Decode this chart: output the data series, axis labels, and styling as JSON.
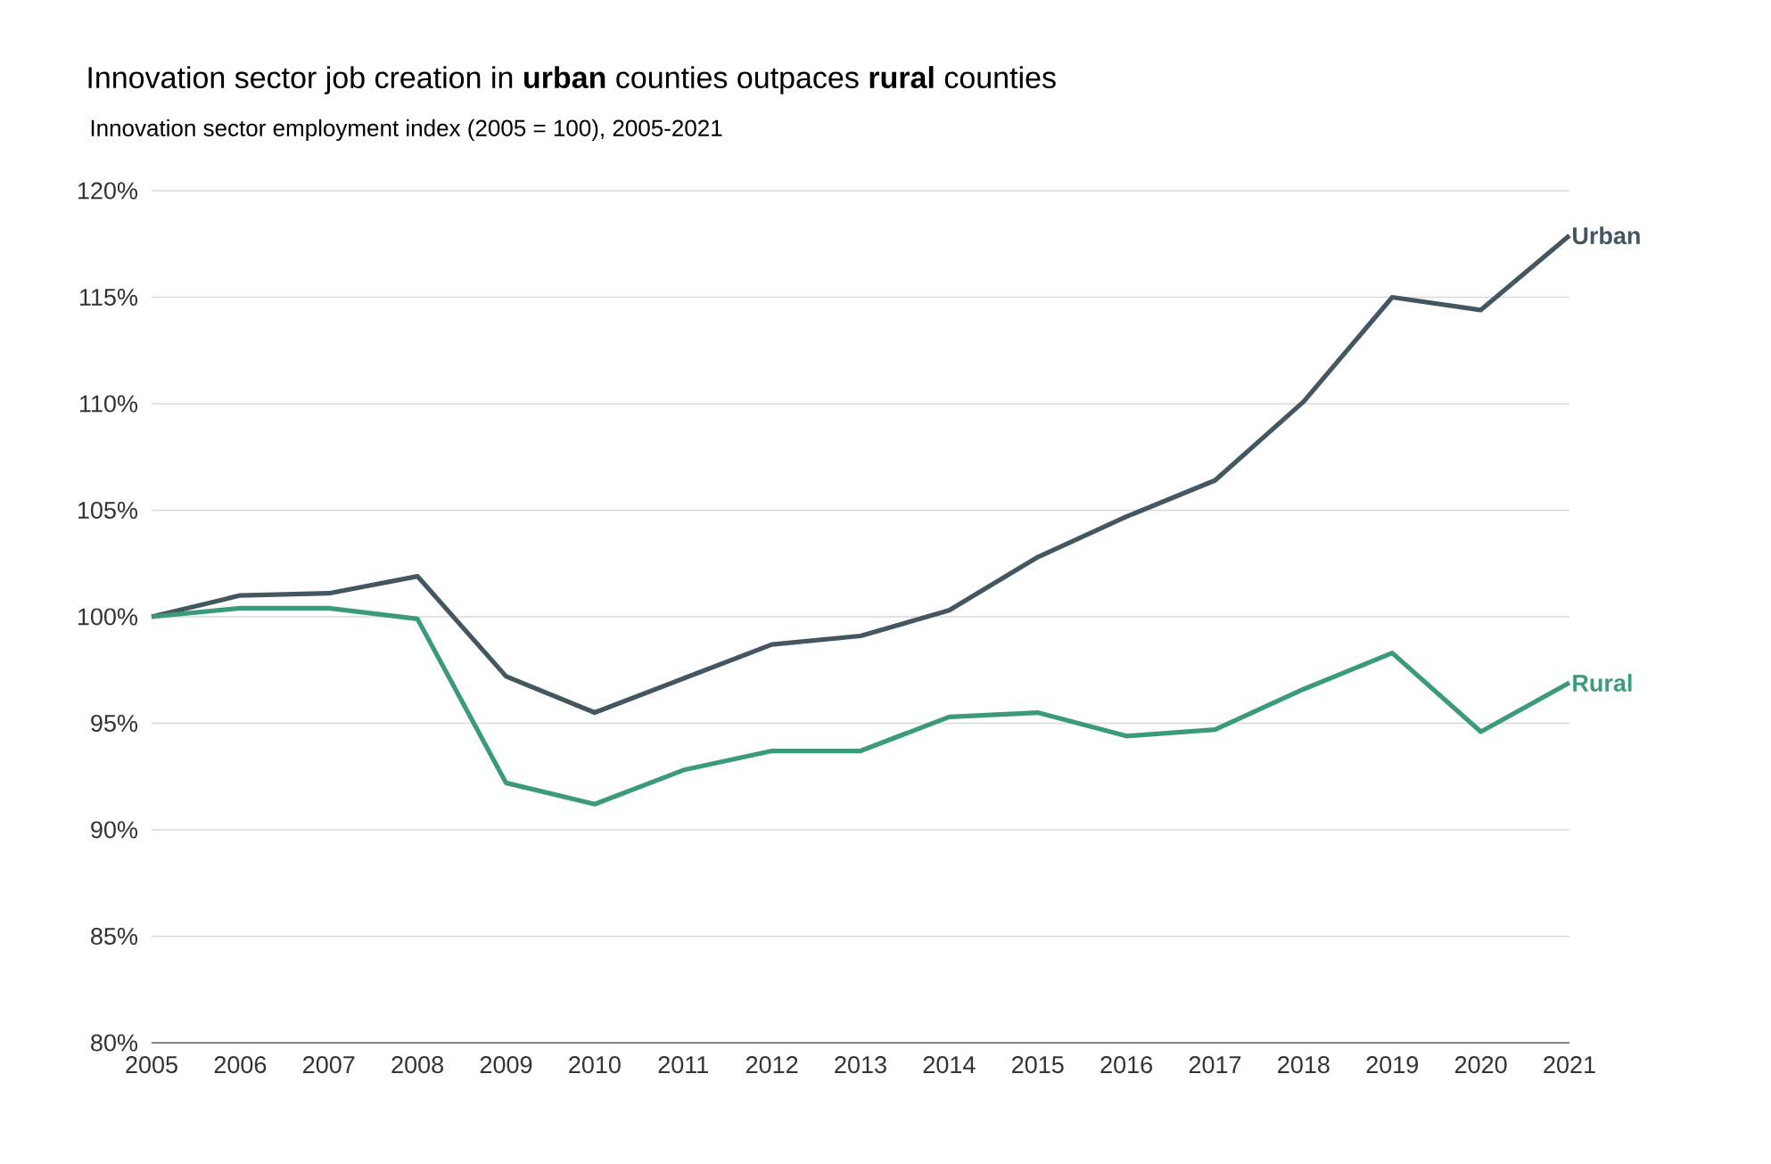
{
  "chart_data": {
    "type": "line",
    "title": "Innovation sector job creation in **urban** counties outpaces **rural** counties",
    "subtitle": "Innovation sector employment index (2005 = 100), 2005-2021",
    "x": [
      2005,
      2006,
      2007,
      2008,
      2009,
      2010,
      2011,
      2012,
      2013,
      2014,
      2015,
      2016,
      2017,
      2018,
      2019,
      2020,
      2021
    ],
    "series": [
      {
        "name": "Urban",
        "color": "#445760",
        "values": [
          100,
          101.0,
          101.1,
          101.9,
          97.2,
          95.5,
          97.1,
          98.7,
          99.1,
          100.3,
          102.8,
          104.7,
          106.4,
          110.1,
          115.0,
          114.4,
          117.9
        ]
      },
      {
        "name": "Rural",
        "color": "#3a9a7a",
        "values": [
          100,
          100.4,
          100.4,
          99.9,
          92.2,
          91.2,
          92.8,
          93.7,
          93.7,
          95.3,
          95.5,
          94.4,
          94.7,
          96.6,
          98.3,
          94.6,
          96.9
        ]
      }
    ],
    "xlim": [
      2005,
      2021
    ],
    "xticks": [
      2005,
      2006,
      2007,
      2008,
      2009,
      2010,
      2011,
      2012,
      2013,
      2014,
      2015,
      2016,
      2017,
      2018,
      2019,
      2020,
      2021
    ],
    "ylim": [
      80,
      120
    ],
    "yticks": [
      {
        "value": 80,
        "label": "80%"
      },
      {
        "value": 85,
        "label": "85%"
      },
      {
        "value": 90,
        "label": "90%"
      },
      {
        "value": 95,
        "label": "95%"
      },
      {
        "value": 100,
        "label": "100%"
      },
      {
        "value": 105,
        "label": "105%"
      },
      {
        "value": 110,
        "label": "110%"
      },
      {
        "value": 115,
        "label": "115%"
      },
      {
        "value": 120,
        "label": "120%"
      }
    ],
    "grid": "y",
    "line_style": "solid"
  }
}
